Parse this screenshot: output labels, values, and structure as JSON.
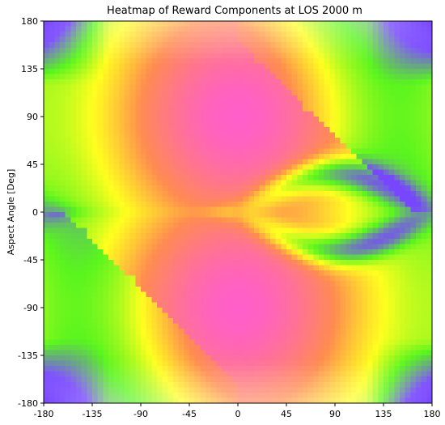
{
  "chart_data": {
    "type": "heatmap",
    "title": "Heatmap of Reward Components at LOS 2000 m",
    "xlabel": "",
    "ylabel": "Aspect Angle [Deg]",
    "xlim": [
      -180,
      180
    ],
    "ylim": [
      -180,
      180
    ],
    "xticks": [
      -180,
      -135,
      -90,
      -45,
      0,
      45,
      90,
      135,
      180
    ],
    "yticks": [
      -180,
      -135,
      -90,
      -45,
      0,
      45,
      90,
      135,
      180
    ],
    "grid": false,
    "legend": "none",
    "resolution": 72,
    "colors": {
      "high": "#ff5fc8",
      "mid_high": "#ff8c50",
      "mid": "#ffff1e",
      "low": "#5af51e",
      "edge": "#7846ff",
      "pale": "#ffffff"
    }
  }
}
